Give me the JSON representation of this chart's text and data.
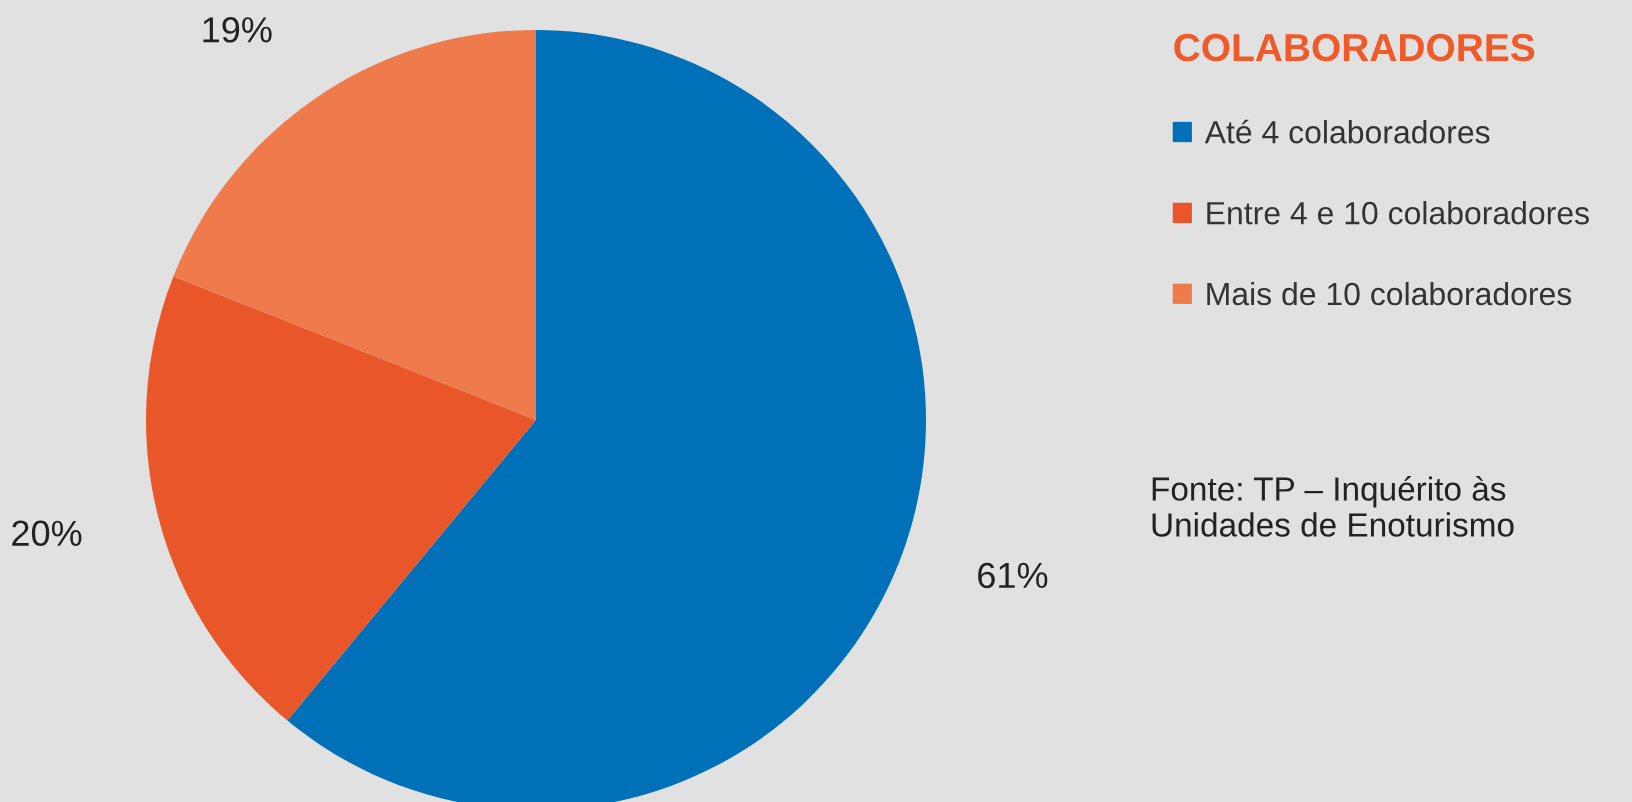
{
  "chart_data": {
    "type": "pie",
    "legend_title": "COLABORADORES",
    "categories": [
      "Até 4 colaboradores",
      "Entre 4 e 10 colaboradores",
      "Mais de 10 colaboradores"
    ],
    "values": [
      61,
      20,
      19
    ],
    "colors": [
      "#0070b8",
      "#e9562a",
      "#ef7a4c"
    ],
    "value_labels": [
      "61%",
      "20%",
      "19%"
    ],
    "legend": "right",
    "annotations": [
      "Fonte: TP – Inquérito às Unidades de Enoturismo"
    ]
  }
}
